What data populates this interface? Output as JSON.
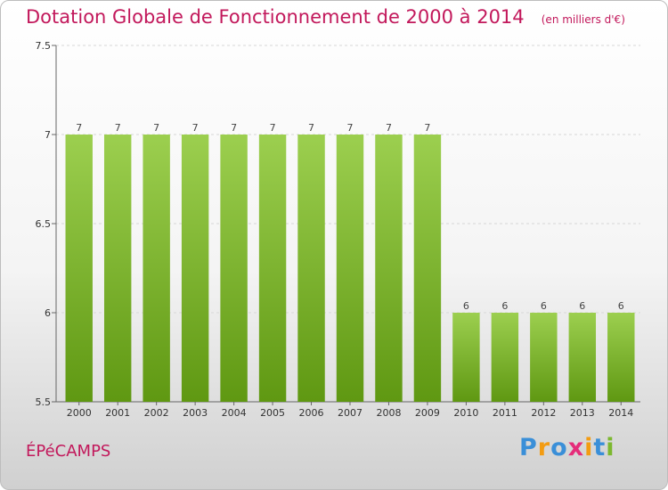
{
  "title": "Dotation Globale de Fonctionnement de 2000 à 2014",
  "unit": "(en milliers d'€)",
  "town": "ÉPéCAMPS",
  "logo": {
    "text": "Proxiti",
    "letters": [
      {
        "ch": "P",
        "color": "#3a8fd8"
      },
      {
        "ch": "r",
        "color": "#f39c12"
      },
      {
        "ch": "o",
        "color": "#3a8fd8"
      },
      {
        "ch": "x",
        "color": "#e52d7a"
      },
      {
        "ch": "i",
        "color": "#f39c12"
      },
      {
        "ch": "t",
        "color": "#3a8fd8"
      },
      {
        "ch": "i",
        "color": "#7cb82f"
      }
    ]
  },
  "colors": {
    "bar_top": "#9ccf4f",
    "bar_bottom": "#5f9812",
    "accent": "#c2185b"
  },
  "chart_data": {
    "type": "bar",
    "categories": [
      "2000",
      "2001",
      "2002",
      "2003",
      "2004",
      "2005",
      "2006",
      "2007",
      "2008",
      "2009",
      "2010",
      "2011",
      "2012",
      "2013",
      "2014"
    ],
    "values": [
      7,
      7,
      7,
      7,
      7,
      7,
      7,
      7,
      7,
      7,
      6,
      6,
      6,
      6,
      6
    ],
    "data_labels": [
      "7",
      "7",
      "7",
      "7",
      "7",
      "7",
      "7",
      "7",
      "7",
      "7",
      "6",
      "6",
      "6",
      "6",
      "6"
    ],
    "ylim": [
      5.5,
      7.5
    ],
    "yticks": [
      5.5,
      6,
      6.5,
      7,
      7.5
    ],
    "ytick_labels": [
      "5.5",
      "6",
      "6.5",
      "7",
      "7.5"
    ],
    "grid": true,
    "xlabel": "",
    "ylabel": ""
  }
}
